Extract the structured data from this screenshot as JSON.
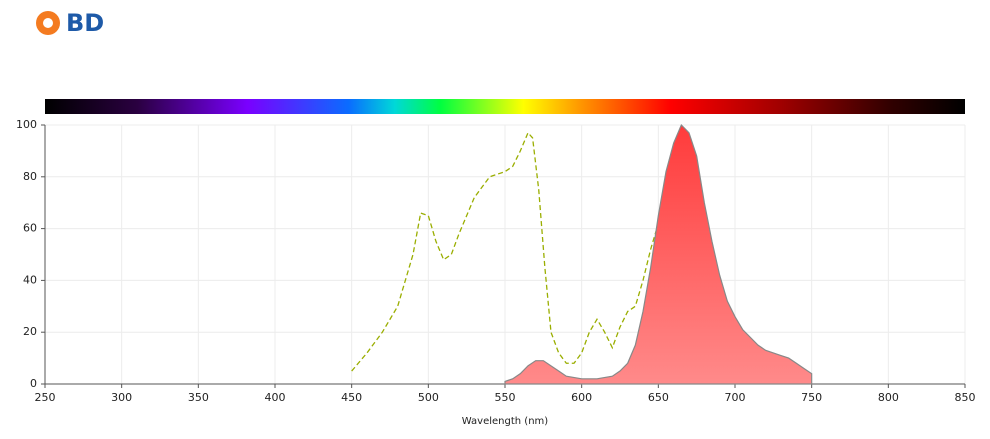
{
  "logo": "BD",
  "chart_data": {
    "type": "line",
    "xlabel": "Wavelength (nm)",
    "xlim": [
      250,
      850
    ],
    "xticks": [
      250,
      300,
      350,
      400,
      450,
      500,
      550,
      600,
      650,
      700,
      750,
      800,
      850
    ],
    "ylim": [
      0,
      100
    ],
    "yticks": [
      0,
      20,
      40,
      60,
      80,
      100
    ],
    "grid": true,
    "series": [
      {
        "color": "#9aae00",
        "dashed": true,
        "fill": false,
        "x": [
          450,
          460,
          470,
          480,
          490,
          495,
          500,
          505,
          510,
          515,
          520,
          530,
          540,
          550,
          555,
          560,
          565,
          568,
          572,
          576,
          580,
          585,
          590,
          595,
          600,
          605,
          610,
          615,
          620,
          625,
          630,
          635,
          640,
          645,
          650,
          655,
          660,
          665,
          670,
          675,
          680,
          685,
          690,
          695,
          700
        ],
        "values": [
          5,
          12,
          20,
          30,
          50,
          66,
          65,
          55,
          48,
          50,
          58,
          72,
          80,
          82,
          84,
          90,
          97,
          95,
          75,
          45,
          20,
          12,
          8,
          8,
          12,
          20,
          25,
          20,
          14,
          22,
          28,
          30,
          40,
          52,
          62,
          60,
          48,
          37,
          28,
          22,
          15,
          10,
          6,
          3,
          0
        ]
      },
      {
        "color": "#ff5252",
        "dashed": false,
        "fill": true,
        "x": [
          550,
          555,
          560,
          565,
          570,
          575,
          580,
          585,
          590,
          600,
          610,
          620,
          625,
          630,
          635,
          640,
          645,
          650,
          655,
          660,
          665,
          670,
          675,
          680,
          685,
          690,
          695,
          700,
          705,
          710,
          715,
          720,
          725,
          730,
          735,
          740,
          745,
          750
        ],
        "values": [
          1,
          2,
          4,
          7,
          9,
          9,
          7,
          5,
          3,
          2,
          2,
          3,
          5,
          8,
          15,
          28,
          45,
          65,
          82,
          93,
          100,
          97,
          88,
          70,
          55,
          42,
          32,
          26,
          21,
          18,
          15,
          13,
          12,
          11,
          10,
          8,
          6,
          4
        ]
      }
    ]
  }
}
